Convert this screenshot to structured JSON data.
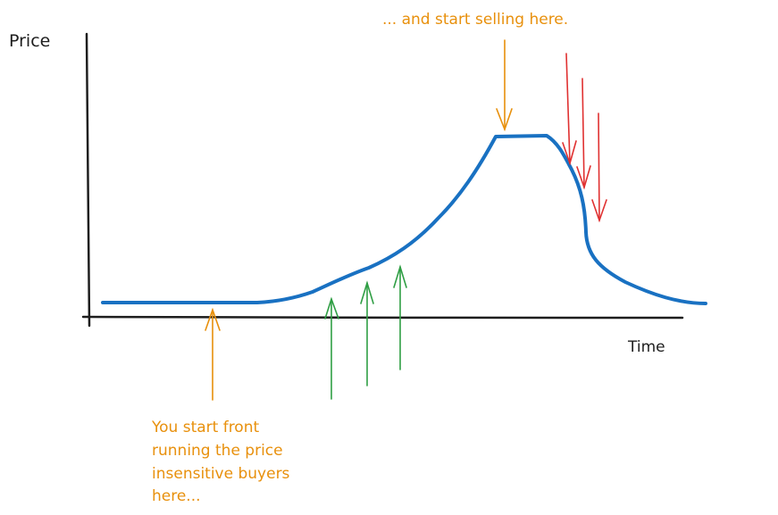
{
  "labels": {
    "y_axis": "Price",
    "x_axis": "Time"
  },
  "annotations": {
    "sell_note": "... and start selling here.",
    "front_run_note": [
      "You start front",
      "running the price",
      "insensitive buyers",
      "here..."
    ]
  },
  "colors": {
    "axis": "#1e1e1e",
    "curve": "#1971c2",
    "orange": "#e8900c",
    "green": "#2f9e44",
    "red": "#e03131"
  }
}
